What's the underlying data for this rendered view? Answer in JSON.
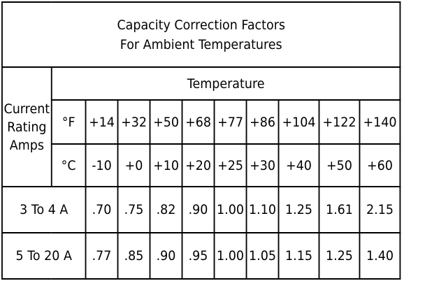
{
  "title": {
    "line1": "Capacity Correction Factors",
    "line2": "For Ambient Temperatures"
  },
  "header": {
    "temperature": "Temperature",
    "current_rating": [
      "Current",
      "Rating",
      "Amps"
    ],
    "f_label": "°F",
    "c_label": "°C"
  },
  "temps_f": [
    "+14",
    "+32",
    "+50",
    "+68",
    "+77",
    "+86",
    "+104",
    "+122",
    "+140"
  ],
  "temps_c": [
    "-10",
    "+0",
    "+10",
    "+20",
    "+25",
    "+30",
    "+40",
    "+50",
    "+60"
  ],
  "rows": [
    {
      "label": "3 To 4 A",
      "values": [
        ".70",
        ".75",
        ".82",
        ".90",
        "1.00",
        "1.10",
        "1.25",
        "1.61",
        "2.15"
      ]
    },
    {
      "label": "5 To 20 A",
      "values": [
        ".77",
        ".85",
        ".90",
        ".95",
        "1.00",
        "1.05",
        "1.15",
        "1.25",
        "1.40"
      ]
    }
  ]
}
